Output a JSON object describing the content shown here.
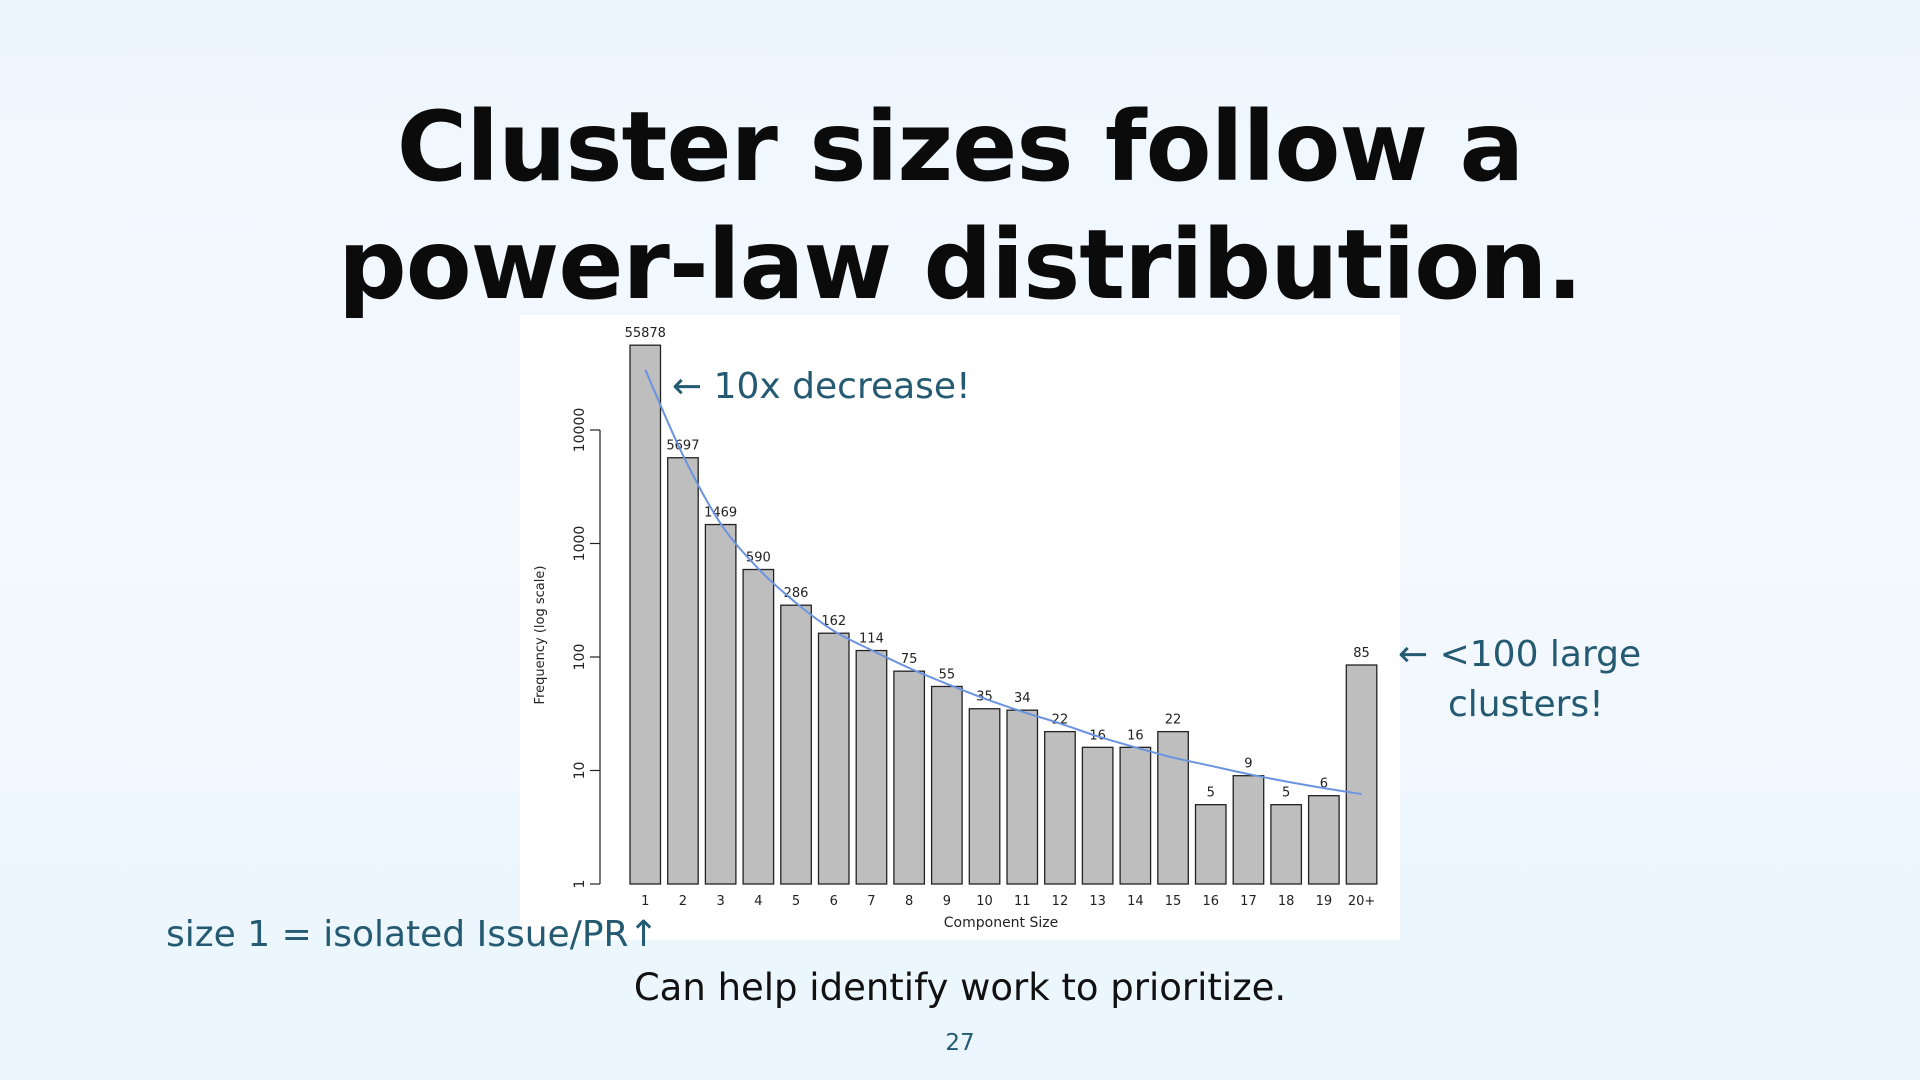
{
  "slide": {
    "title_line1": "Cluster sizes follow a",
    "title_line2": "power-law distribution.",
    "annotation_top": "← 10x decrease!",
    "annotation_right_line1": "← <100 large",
    "annotation_right_line2": "clusters!",
    "annotation_bottom": "size 1 = isolated Issue/PR↑",
    "caption": "Can help identify work to prioritize.",
    "page_number": "27"
  },
  "colors": {
    "bar_fill": "#bebebe",
    "bar_stroke": "#222222",
    "trend_line": "#6b93e0",
    "annotation_text": "#245a72"
  },
  "chart_data": {
    "type": "bar",
    "yscale": "log",
    "categories": [
      "1",
      "2",
      "3",
      "4",
      "5",
      "6",
      "7",
      "8",
      "9",
      "10",
      "11",
      "12",
      "13",
      "14",
      "15",
      "16",
      "17",
      "18",
      "19",
      "20+"
    ],
    "values": [
      55878,
      5697,
      1469,
      590,
      286,
      162,
      114,
      75,
      55,
      35,
      34,
      22,
      16,
      16,
      22,
      5,
      9,
      5,
      6,
      85
    ],
    "data_labels": [
      "55878",
      "5697",
      "1469",
      "590",
      "286",
      "162",
      "114",
      "75",
      "55",
      "35",
      "34",
      "22",
      "16",
      "16",
      "22",
      "5",
      "9",
      "5",
      "6",
      "85"
    ],
    "xlabel": "Component Size",
    "ylabel": "Frequency (log scale)",
    "yticks": [
      1,
      10,
      100,
      1000,
      10000
    ],
    "ytick_labels": [
      "1",
      "10",
      "100",
      "1000",
      "10000"
    ],
    "ylim": [
      1,
      100000
    ],
    "trend_line": {
      "type": "line",
      "x_categories": [
        "1",
        "2",
        "3",
        "4",
        "5",
        "6",
        "7",
        "8",
        "9",
        "10",
        "11",
        "12",
        "13",
        "14",
        "15",
        "16",
        "17",
        "18",
        "19",
        "20+"
      ],
      "values": [
        34000,
        6000,
        1500,
        600,
        300,
        170,
        115,
        80,
        58,
        43,
        33,
        26,
        20,
        16,
        13,
        11,
        9.3,
        8,
        7,
        6.2
      ]
    },
    "grid": false,
    "legend": "none"
  }
}
